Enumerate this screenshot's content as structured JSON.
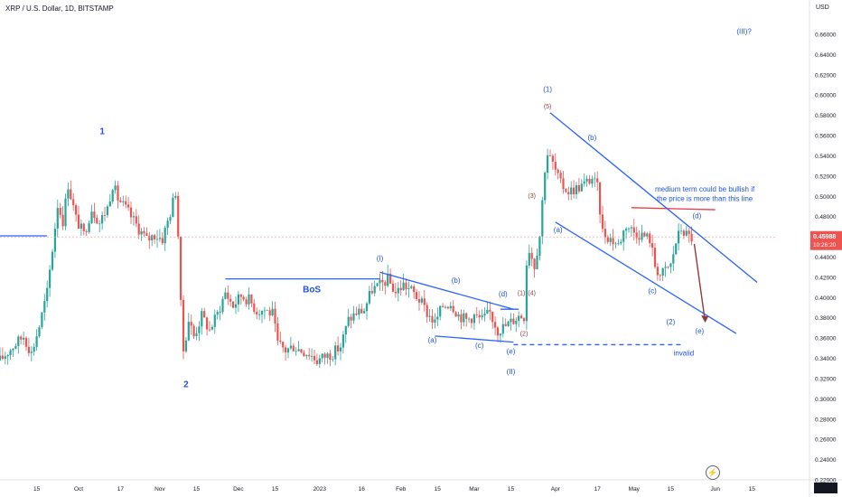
{
  "header": {
    "title": "XRP / U.S. Dollar, 1D, BITSTAMP",
    "currency": "USD"
  },
  "price_tag": {
    "price": "0.45988",
    "countdown": "10:26:20"
  },
  "colors": {
    "up": "#26a69a",
    "down": "#ef5350",
    "blue": "#2962ff",
    "label_blue": "#1e53e5",
    "red": "#f23645",
    "brown": "#8d3a3a",
    "axis_text": "#131722",
    "grid_dash": "#ef9a9a"
  },
  "chart_data": {
    "type": "candlestick",
    "symbol": "XRP / U.S. Dollar",
    "interval": "1D",
    "exchange": "BITSTAMP",
    "ylim": [
      0.22,
      0.68
    ],
    "y_ticks": [
      "0.22000",
      "0.24000",
      "0.26000",
      "0.28000",
      "0.30000",
      "0.32000",
      "0.34000",
      "0.36000",
      "0.38000",
      "0.40000",
      "0.42000",
      "0.44000",
      "0.46000",
      "0.48000",
      "0.50000",
      "0.52000",
      "0.54000",
      "0.56000",
      "0.58000",
      "0.60000",
      "0.62000",
      "0.64000",
      "0.66000"
    ],
    "xlim": [
      "2022-09-01",
      "2023-06-24"
    ],
    "x_ticks": [
      {
        "date": "2022-09-15",
        "label": "15"
      },
      {
        "date": "2022-10-01",
        "label": "Oct"
      },
      {
        "date": "2022-10-17",
        "label": "17"
      },
      {
        "date": "2022-11-01",
        "label": "Nov"
      },
      {
        "date": "2022-11-15",
        "label": "15"
      },
      {
        "date": "2022-12-01",
        "label": "Dec"
      },
      {
        "date": "2022-12-15",
        "label": "15"
      },
      {
        "date": "2023-01-01",
        "label": "2023"
      },
      {
        "date": "2023-01-17",
        "label": "16"
      },
      {
        "date": "2023-02-01",
        "label": "Feb"
      },
      {
        "date": "2023-02-15",
        "label": "15"
      },
      {
        "date": "2023-03-01",
        "label": "Mar"
      },
      {
        "date": "2023-03-15",
        "label": "15"
      },
      {
        "date": "2023-04-01",
        "label": "Apr"
      },
      {
        "date": "2023-04-17",
        "label": "17"
      },
      {
        "date": "2023-05-01",
        "label": "May"
      },
      {
        "date": "2023-05-15",
        "label": "15"
      },
      {
        "date": "2023-06-01",
        "label": "Jun"
      },
      {
        "date": "2023-06-15",
        "label": "15"
      }
    ],
    "path": [
      [
        "2022-09-01",
        0.338
      ],
      [
        "2022-09-06",
        0.352
      ],
      [
        "2022-09-10",
        0.362
      ],
      [
        "2022-09-13",
        0.345
      ],
      [
        "2022-09-16",
        0.372
      ],
      [
        "2022-09-19",
        0.405
      ],
      [
        "2022-09-21",
        0.448
      ],
      [
        "2022-09-23",
        0.492
      ],
      [
        "2022-09-25",
        0.476
      ],
      [
        "2022-09-27",
        0.512
      ],
      [
        "2022-09-30",
        0.478
      ],
      [
        "2022-10-03",
        0.462
      ],
      [
        "2022-10-06",
        0.488
      ],
      [
        "2022-10-09",
        0.474
      ],
      [
        "2022-10-12",
        0.489
      ],
      [
        "2022-10-14",
        0.512
      ],
      [
        "2022-10-16",
        0.498
      ],
      [
        "2022-10-20",
        0.484
      ],
      [
        "2022-10-24",
        0.468
      ],
      [
        "2022-10-27",
        0.457
      ],
      [
        "2022-10-30",
        0.462
      ],
      [
        "2022-11-02",
        0.458
      ],
      [
        "2022-11-05",
        0.484
      ],
      [
        "2022-11-07",
        0.505
      ],
      [
        "2022-11-08",
        0.462
      ],
      [
        "2022-11-09",
        0.392
      ],
      [
        "2022-11-10",
        0.348
      ],
      [
        "2022-11-12",
        0.378
      ],
      [
        "2022-11-14",
        0.362
      ],
      [
        "2022-11-17",
        0.382
      ],
      [
        "2022-11-20",
        0.368
      ],
      [
        "2022-11-23",
        0.384
      ],
      [
        "2022-11-26",
        0.405
      ],
      [
        "2022-11-29",
        0.392
      ],
      [
        "2022-12-02",
        0.402
      ],
      [
        "2022-12-05",
        0.398
      ],
      [
        "2022-12-08",
        0.387
      ],
      [
        "2022-12-11",
        0.388
      ],
      [
        "2022-12-14",
        0.384
      ],
      [
        "2022-12-16",
        0.354
      ],
      [
        "2022-12-19",
        0.348
      ],
      [
        "2022-12-22",
        0.352
      ],
      [
        "2022-12-25",
        0.348
      ],
      [
        "2022-12-28",
        0.345
      ],
      [
        "2022-12-31",
        0.338
      ],
      [
        "2023-01-03",
        0.342
      ],
      [
        "2023-01-06",
        0.345
      ],
      [
        "2023-01-09",
        0.352
      ],
      [
        "2023-01-12",
        0.378
      ],
      [
        "2023-01-15",
        0.385
      ],
      [
        "2023-01-18",
        0.388
      ],
      [
        "2023-01-21",
        0.408
      ],
      [
        "2023-01-24",
        0.412
      ],
      [
        "2023-01-27",
        0.418
      ],
      [
        "2023-01-30",
        0.405
      ],
      [
        "2023-02-02",
        0.413
      ],
      [
        "2023-02-05",
        0.407
      ],
      [
        "2023-02-08",
        0.398
      ],
      [
        "2023-02-11",
        0.385
      ],
      [
        "2023-02-14",
        0.375
      ],
      [
        "2023-02-17",
        0.392
      ],
      [
        "2023-02-20",
        0.395
      ],
      [
        "2023-02-23",
        0.383
      ],
      [
        "2023-02-26",
        0.378
      ],
      [
        "2023-03-01",
        0.382
      ],
      [
        "2023-03-04",
        0.378
      ],
      [
        "2023-03-07",
        0.385
      ],
      [
        "2023-03-10",
        0.368
      ],
      [
        "2023-03-13",
        0.372
      ],
      [
        "2023-03-16",
        0.378
      ],
      [
        "2023-03-18",
        0.382
      ],
      [
        "2023-03-20",
        0.382
      ],
      [
        "2023-03-21",
        0.435
      ],
      [
        "2023-03-22",
        0.448
      ],
      [
        "2023-03-24",
        0.432
      ],
      [
        "2023-03-26",
        0.462
      ],
      [
        "2023-03-28",
        0.528
      ],
      [
        "2023-03-29",
        0.542
      ],
      [
        "2023-03-31",
        0.532
      ],
      [
        "2023-04-03",
        0.512
      ],
      [
        "2023-04-06",
        0.505
      ],
      [
        "2023-04-09",
        0.508
      ],
      [
        "2023-04-12",
        0.512
      ],
      [
        "2023-04-15",
        0.518
      ],
      [
        "2023-04-17",
        0.508
      ],
      [
        "2023-04-19",
        0.465
      ],
      [
        "2023-04-22",
        0.458
      ],
      [
        "2023-04-25",
        0.452
      ],
      [
        "2023-04-28",
        0.472
      ],
      [
        "2023-05-01",
        0.465
      ],
      [
        "2023-05-04",
        0.462
      ],
      [
        "2023-05-07",
        0.458
      ],
      [
        "2023-05-09",
        0.432
      ],
      [
        "2023-05-11",
        0.422
      ],
      [
        "2023-05-13",
        0.427
      ],
      [
        "2023-05-15",
        0.432
      ],
      [
        "2023-05-17",
        0.455
      ],
      [
        "2023-05-19",
        0.468
      ],
      [
        "2023-05-21",
        0.462
      ],
      [
        "2023-05-23",
        0.459
      ]
    ],
    "horizontal_lines": [
      {
        "name": "left-level",
        "y": 0.461,
        "x1": "2022-09-01",
        "x2": "2022-09-19",
        "color": "#2962ff"
      },
      {
        "name": "bos-line",
        "y": 0.4185,
        "x1": "2022-11-26",
        "x2": "2023-01-24",
        "color": "#2962ff"
      },
      {
        "name": "bullish-line",
        "y1": 0.4888,
        "y2": 0.4868,
        "x1": "2023-04-30",
        "x2": "2023-06-01",
        "color": "#f23645"
      },
      {
        "name": "invalid-line",
        "y": 0.3535,
        "x1": "2023-03-16",
        "x2": "2023-05-20",
        "color": "#2962ff",
        "dashed": true
      },
      {
        "name": "current-price",
        "y": 0.4599,
        "x1": "2022-09-01",
        "x2": "2023-06-24",
        "color": "#ef9a9a",
        "dashed": true
      }
    ],
    "trend_lines": [
      {
        "name": "wedge-top",
        "points": [
          [
            "2023-01-24",
            0.425
          ],
          [
            "2023-03-16",
            0.3885
          ]
        ]
      },
      {
        "name": "wedge-bottom",
        "points": [
          [
            "2023-02-14",
            0.362
          ],
          [
            "2023-03-16",
            0.356
          ]
        ]
      },
      {
        "name": "d-to-e-top",
        "points": [
          [
            "2023-03-11",
            0.3885
          ],
          [
            "2023-03-18",
            0.3885
          ]
        ]
      },
      {
        "name": "channel-top",
        "points": [
          [
            "2023-03-30",
            0.5825
          ],
          [
            "2023-06-17",
            0.415
          ]
        ]
      },
      {
        "name": "channel-bottom",
        "points": [
          [
            "2023-04-01",
            0.4745
          ],
          [
            "2023-06-09",
            0.3645
          ]
        ]
      }
    ],
    "arrow": {
      "from": [
        "2023-05-24",
        0.453
      ],
      "to": [
        "2023-05-28",
        0.377
      ],
      "color": "#8d3a3a"
    },
    "annotations": [
      {
        "text": "1",
        "x": "2022-10-10",
        "y": 0.5615,
        "color": "#1e53e5",
        "size": 10
      },
      {
        "text": "2",
        "x": "2022-11-11",
        "y": 0.3115,
        "color": "#1e53e5",
        "size": 10
      },
      {
        "text": "BoS",
        "x": "2022-12-29",
        "y": 0.405,
        "color": "#1e53e5",
        "size": 10
      },
      {
        "text": "(I)",
        "x": "2023-01-24",
        "y": 0.4365,
        "color": "#1e53e5",
        "size": 8
      },
      {
        "text": "(a)",
        "x": "2023-02-13",
        "y": 0.3555,
        "color": "#1e53e5",
        "size": 8
      },
      {
        "text": "(b)",
        "x": "2023-02-22",
        "y": 0.4145,
        "color": "#1e53e5",
        "size": 8
      },
      {
        "text": "(c)",
        "x": "2023-03-03",
        "y": 0.3505,
        "color": "#1e53e5",
        "size": 8
      },
      {
        "text": "(d)",
        "x": "2023-03-12",
        "y": 0.401,
        "color": "#1e53e5",
        "size": 8
      },
      {
        "text": "(e)",
        "x": "2023-03-15",
        "y": 0.3445,
        "color": "#1e53e5",
        "size": 8
      },
      {
        "text": "(II)",
        "x": "2023-03-15",
        "y": 0.3245,
        "color": "#1e53e5",
        "size": 8
      },
      {
        "text": "(3)",
        "x": "2023-03-23",
        "y": 0.4985,
        "color": "#8d3a3a",
        "size": 7
      },
      {
        "text": "(1)",
        "x": "2023-03-19",
        "y": 0.4025,
        "color": "#8d3a3a",
        "size": 7
      },
      {
        "text": "(2)",
        "x": "2023-03-20",
        "y": 0.3625,
        "color": "#8d3a3a",
        "size": 7
      },
      {
        "text": "(4)",
        "x": "2023-03-23",
        "y": 0.4025,
        "color": "#8d3a3a",
        "size": 7
      },
      {
        "text": "(5)",
        "x": "2023-03-29",
        "y": 0.587,
        "color": "#8d3a3a",
        "size": 7
      },
      {
        "text": "(1)",
        "x": "2023-03-29",
        "y": 0.6035,
        "color": "#1e53e5",
        "size": 8
      },
      {
        "text": "(a)",
        "x": "2023-04-02",
        "y": 0.4645,
        "color": "#1e53e5",
        "size": 8
      },
      {
        "text": "(b)",
        "x": "2023-04-15",
        "y": 0.5555,
        "color": "#1e53e5",
        "size": 8
      },
      {
        "text": "(c)",
        "x": "2023-05-08",
        "y": 0.4045,
        "color": "#1e53e5",
        "size": 8
      },
      {
        "text": "(d)",
        "x": "2023-05-25",
        "y": 0.4785,
        "color": "#1e53e5",
        "size": 8
      },
      {
        "text": "(e)",
        "x": "2023-05-26",
        "y": 0.3645,
        "color": "#1e53e5",
        "size": 8
      },
      {
        "text": "(2)",
        "x": "2023-05-15",
        "y": 0.3735,
        "color": "#1e53e5",
        "size": 8
      },
      {
        "text": "(III)?",
        "x": "2023-06-12",
        "y": 0.6605,
        "color": "#1e53e5",
        "size": 8
      },
      {
        "text": "invalid",
        "x": "2023-05-20",
        "y": 0.3425,
        "color": "#1e53e5",
        "size": 8
      },
      {
        "text": "medium term could be bullish if",
        "x": "2023-05-28",
        "y": 0.5045,
        "color": "#1e53e5",
        "size": 8
      },
      {
        "text": "the price is more than this line",
        "x": "2023-05-28",
        "y": 0.4955,
        "color": "#1e53e5",
        "size": 8
      }
    ]
  }
}
